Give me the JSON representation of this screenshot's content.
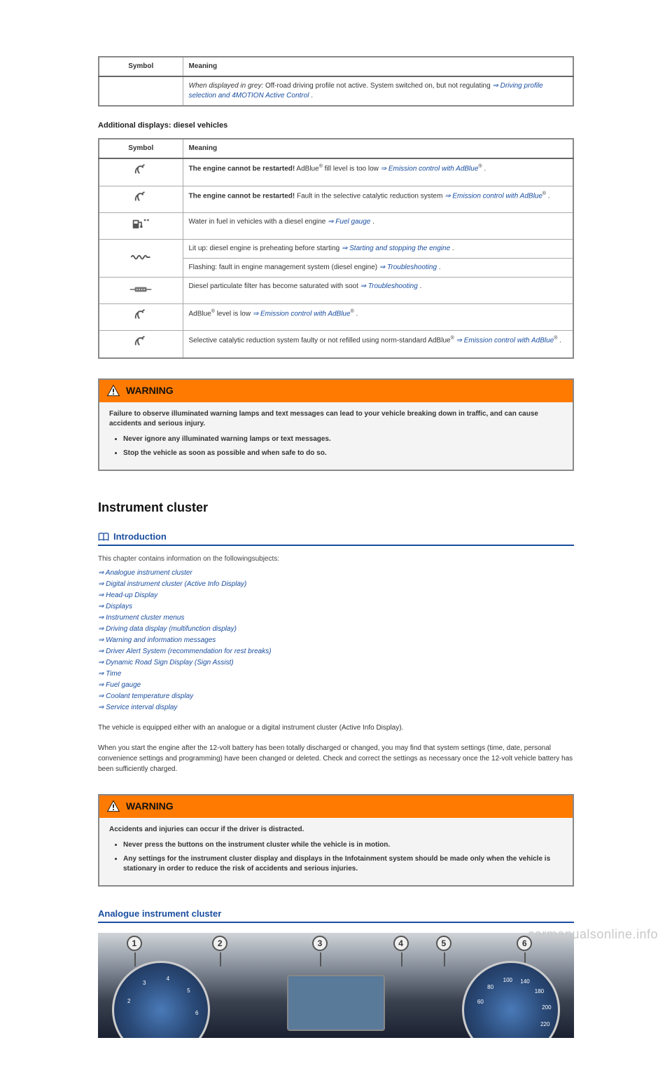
{
  "table1": {
    "headers": {
      "symbol": "Symbol",
      "meaning": "Meaning"
    },
    "rows": [
      {
        "symbol_svg": "",
        "text_prefix_italic": "When displayed in grey:",
        "text_rest": " Off-road driving profile not active. System switched on, but not regulating ",
        "link": "⇒ Driving profile selection and 4MOTION Active Control",
        "text_after": " ."
      }
    ]
  },
  "diesel_heading": "Additional displays: diesel vehicles",
  "table2": {
    "headers": {
      "symbol": "Symbol",
      "meaning": "Meaning"
    },
    "rows": [
      {
        "symbol": "adblue",
        "bold": "The engine cannot be restarted!",
        "rest": " AdBlue",
        "sup": "®",
        "rest2": " fill level is too low ",
        "link": "⇒ Emission control with AdBlue",
        "sup2": "®",
        "after": " ."
      },
      {
        "symbol": "adblue",
        "bold": "The engine cannot be restarted!",
        "rest": " Fault in the selective catalytic reduction system ",
        "link": "⇒ Emission control with AdBlue",
        "sup2": "®",
        "after": " ."
      },
      {
        "symbol": "fuel",
        "rest": "Water in fuel in vehicles with a diesel engine ",
        "link": "⇒ Fuel gauge",
        "after": " ."
      },
      {
        "symbol": "coil",
        "rowspan": 2,
        "rest": "Lit up: diesel engine is preheating before starting ",
        "link": "⇒ Starting and stopping the engine",
        "after": " ."
      },
      {
        "symbol": "",
        "rest": "Flashing: fault in engine management system (diesel engine) ",
        "link": "⇒ Troubleshooting",
        "after": " ."
      },
      {
        "symbol": "dpf",
        "rest": "Diesel particulate filter has become saturated with soot ",
        "link": "⇒ Troubleshooting",
        "after": " ."
      },
      {
        "symbol": "adblue",
        "rest": "AdBlue",
        "sup": "®",
        "rest2": " level is low ",
        "link": "⇒ Emission control with AdBlue",
        "sup2": "®",
        "after": " ."
      },
      {
        "symbol": "adblue",
        "rest": "Selective catalytic reduction system faulty or not refilled using norm-standard AdBlue",
        "sup": "®",
        "rest2": " ",
        "link": "⇒ Emission control with AdBlue",
        "sup2": "®",
        "after": " ."
      }
    ]
  },
  "warning1": {
    "title": "WARNING",
    "lead": "Failure to observe illuminated warning lamps and text messages can lead to your vehicle breaking down in traffic, and can cause accidents and serious injury.",
    "bullets": [
      "Never ignore any illuminated warning lamps or text messages.",
      "Stop the vehicle as soon as possible and when safe to do so."
    ]
  },
  "h2_cluster": "Instrument cluster",
  "intro_title": "Introduction",
  "intro_lead": "This chapter contains information on the followingsubjects:",
  "intro_links": [
    "⇒ Analogue instrument cluster",
    "⇒ Digital instrument cluster (Active Info Display)",
    "⇒ Head-up Display",
    "⇒ Displays",
    "⇒ Instrument cluster menus",
    "⇒ Driving data display (multifunction display)",
    "⇒ Warning and information messages",
    "⇒ Driver Alert System (recommendation for rest breaks)",
    "⇒ Dynamic Road Sign Display (Sign Assist)",
    "⇒ Time",
    "⇒ Fuel gauge",
    "⇒ Coolant temperature display",
    "⇒ Service interval display"
  ],
  "para1": "The vehicle is equipped either with an analogue or a digital instrument cluster (Active Info Display).",
  "para2": "When you start the engine after the 12-volt battery has been totally discharged or changed, you may find that system settings (time, date, personal convenience settings and programming) have been changed or deleted. Check and correct the settings as necessary once the 12-volt vehicle battery has been sufficiently charged.",
  "warning2": {
    "title": "WARNING",
    "lead": "Accidents and injuries can occur if the driver is distracted.",
    "bullets": [
      "Never press the buttons on the instrument cluster while the vehicle is in motion.",
      "Any settings for the instrument cluster display and displays in the Infotainment system should be made only when the vehicle is stationary in order to reduce the risk of accidents and serious injuries."
    ]
  },
  "analogue_head": "Analogue instrument cluster",
  "callouts": [
    "1",
    "2",
    "3",
    "4",
    "5",
    "6"
  ],
  "callout_positions_pct": [
    6,
    24,
    45,
    62,
    71,
    88
  ],
  "left_gauge_ticks": [
    "2",
    "3",
    "4",
    "5",
    "6"
  ],
  "right_gauge_ticks": [
    "60",
    "80",
    "100",
    "140",
    "180",
    "200",
    "220"
  ],
  "watermark": "carmanualsonline.info",
  "colors": {
    "link": "#1a4ea0",
    "warn_bg": "#ff7a00",
    "border": "#888888"
  }
}
